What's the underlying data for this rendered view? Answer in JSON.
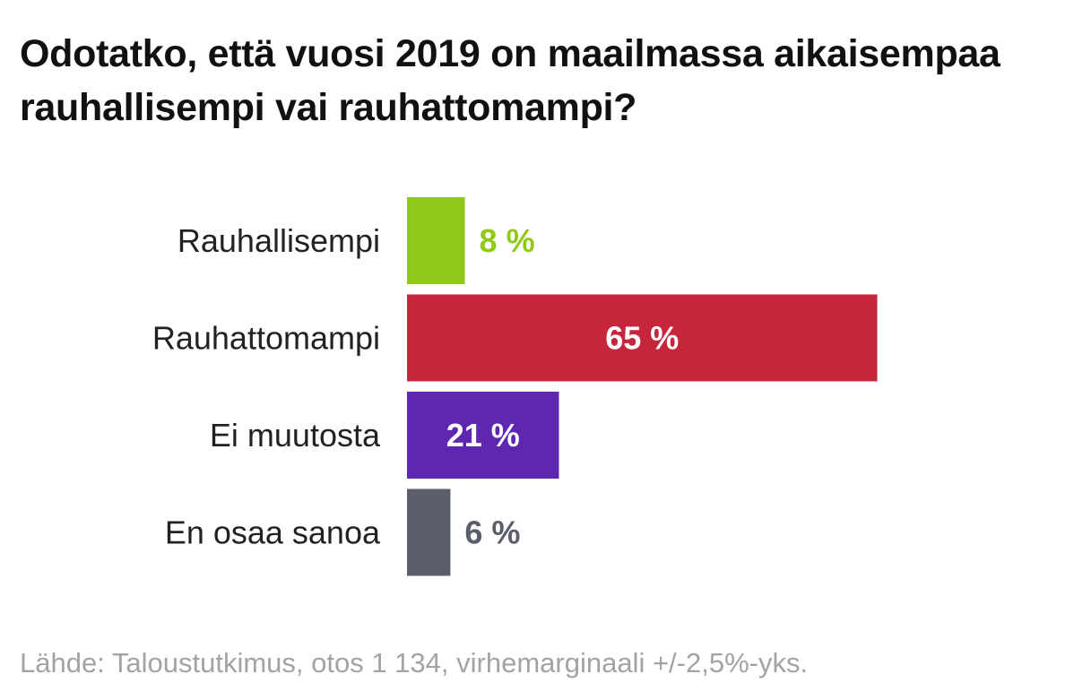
{
  "chart_data": {
    "type": "bar",
    "orientation": "horizontal",
    "title": "Odotatko, että vuosi 2019 on maailmassa aikaisempaa rauhallisempi vai rauhattomampi?",
    "categories": [
      "Rauhallisempi",
      "Rauhattomampi",
      "Ei muutosta",
      "En osaa sanoa"
    ],
    "values": [
      8,
      65,
      21,
      6
    ],
    "value_labels": [
      "8 %",
      "65 %",
      "21 %",
      "6 %"
    ],
    "colors": [
      "#8fc919",
      "#c5263c",
      "#5d27b0",
      "#5a5f6b"
    ],
    "unit": "%",
    "xlim": [
      0,
      100
    ],
    "grid": false,
    "legend": "none",
    "source": "Lähde: Taloustutkimus, otos 1 134, virhemarginaali +/-2,5%-yks."
  }
}
